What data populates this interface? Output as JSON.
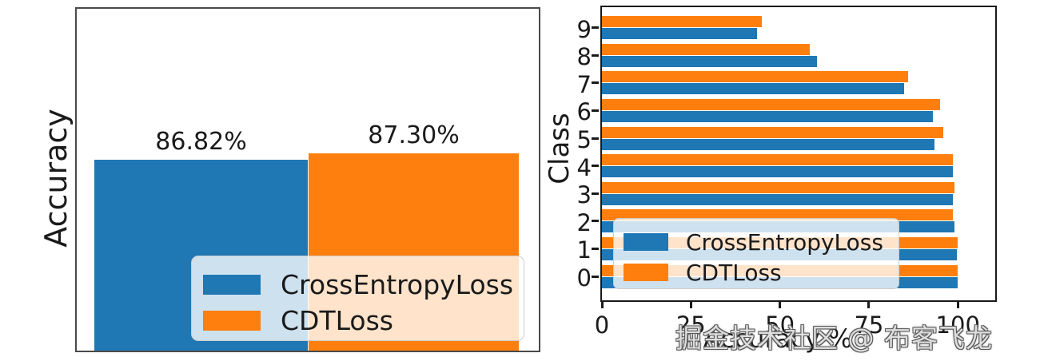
{
  "watermark": {
    "text": "掘金技术社区 @ 布客飞龙"
  },
  "colors": {
    "crossentropy_blue": "#1f77b4",
    "cdt_orange": "#ff7f0e",
    "axis_dark": "#1a1a1a",
    "left_spine_gray": "#4a4a4a"
  },
  "chart_data": [
    {
      "type": "bar",
      "title": "",
      "xlabel": "",
      "ylabel": "Accuracy",
      "grid": false,
      "legend_position": "lower right",
      "ylim": [
        72,
        98.5
      ],
      "series": [
        {
          "name": "CrossEntropyLoss",
          "color": "#1f77b4",
          "value": 86.82,
          "label": "86.82%"
        },
        {
          "name": "CDTLoss",
          "color": "#ff7f0e",
          "value": 87.3,
          "label": "87.30%"
        }
      ]
    },
    {
      "type": "bar-horizontal",
      "title": "",
      "xlabel": "Accuracy %",
      "ylabel": "Class",
      "grid": false,
      "legend_position": "lower left",
      "xlim": [
        0,
        110.5
      ],
      "xticks": [
        "0",
        "25",
        "50",
        "75",
        "100"
      ],
      "xtick_values": [
        0,
        25,
        50,
        75,
        100
      ],
      "categories": [
        "0",
        "1",
        "2",
        "3",
        "4",
        "5",
        "6",
        "7",
        "8",
        "9"
      ],
      "series": [
        {
          "name": "CrossEntropyLoss",
          "color": "#1f77b4",
          "values": [
            99.9,
            99.8,
            99.0,
            98.5,
            98.6,
            93.5,
            93.0,
            85.0,
            60.5,
            43.5
          ]
        },
        {
          "name": "CDTLoss",
          "color": "#ff7f0e",
          "values": [
            99.9,
            100.0,
            98.5,
            99.0,
            98.7,
            96.0,
            95.0,
            86.0,
            58.5,
            45.0
          ]
        }
      ]
    }
  ]
}
